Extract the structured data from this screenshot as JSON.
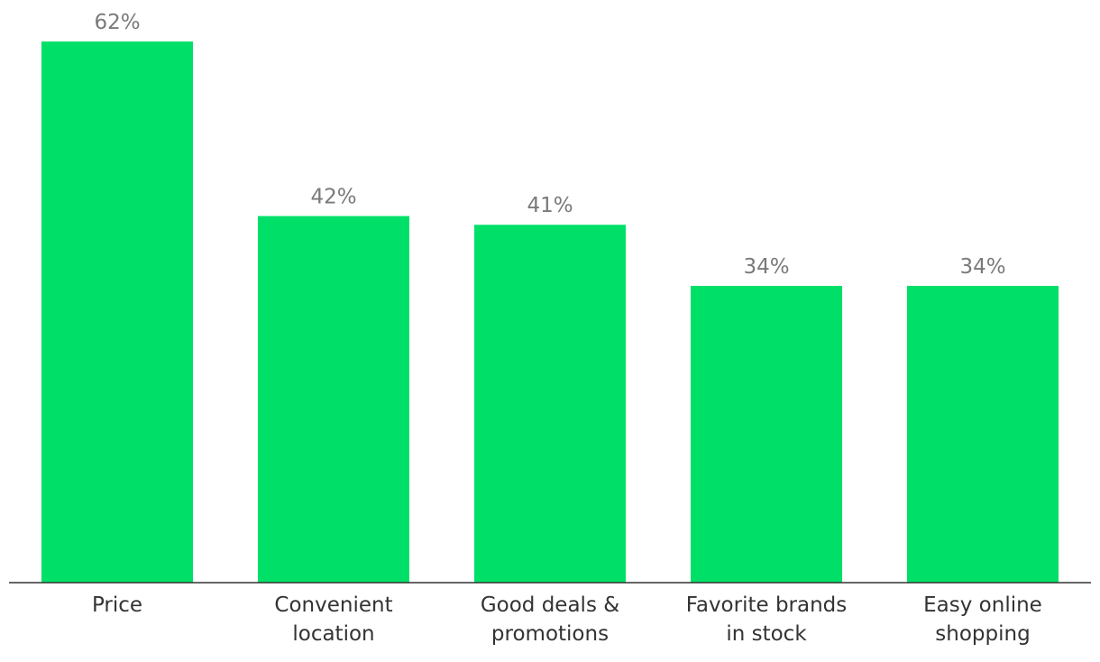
{
  "colors": {
    "bar": "#00e068",
    "value_label": "#7a7a7a",
    "category_label": "#333333",
    "baseline": "#333333"
  },
  "chart_data": {
    "type": "bar",
    "title": "",
    "xlabel": "",
    "ylabel": "",
    "ylim": [
      0,
      62
    ],
    "grid": false,
    "legend": "none",
    "categories": [
      [
        "Price"
      ],
      [
        "Convenient",
        "location"
      ],
      [
        "Good deals &",
        "promotions"
      ],
      [
        "Favorite brands",
        "in stock"
      ],
      [
        "Easy online",
        "shopping"
      ]
    ],
    "values": [
      62,
      42,
      41,
      34,
      34
    ],
    "value_labels": [
      "62%",
      "42%",
      "41%",
      "34%",
      "34%"
    ]
  }
}
